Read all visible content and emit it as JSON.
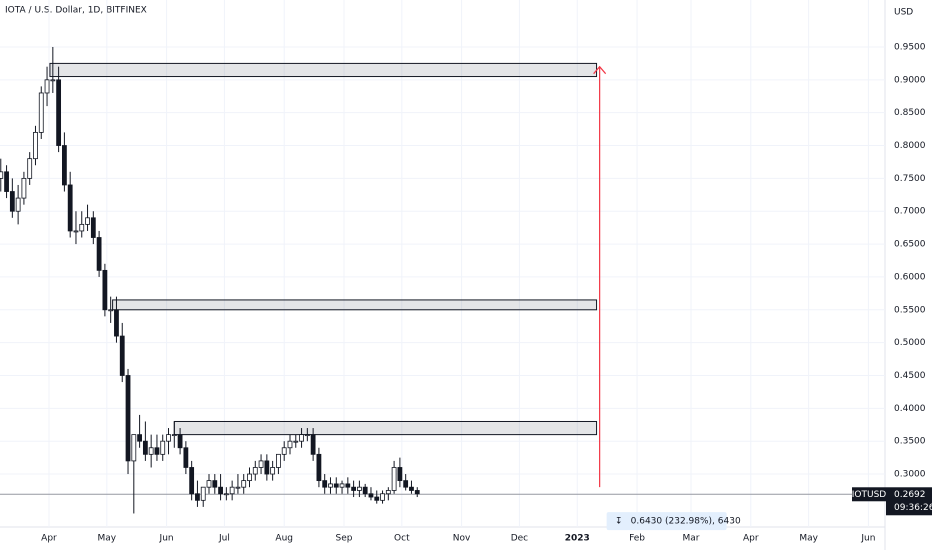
{
  "chart_data": {
    "type": "candlestick",
    "title": "IOTA / U.S. Dollar, 1D, BITFINEX",
    "currency": "USD",
    "symbol": "IOTUSD",
    "last_price": 0.2692,
    "last_price_label": "0.2692",
    "countdown": "09:36:26",
    "xlim": [
      65.6,
      524.6
    ],
    "ylim": [
      0.2194,
      1.0215
    ],
    "xticks": [
      {
        "value": 91,
        "label": "Apr"
      },
      {
        "value": 121,
        "label": "May"
      },
      {
        "value": 152,
        "label": "Jun"
      },
      {
        "value": 182,
        "label": "Jul"
      },
      {
        "value": 213,
        "label": "Aug"
      },
      {
        "value": 244,
        "label": "Sep"
      },
      {
        "value": 274,
        "label": "Oct"
      },
      {
        "value": 305,
        "label": "Nov"
      },
      {
        "value": 335,
        "label": "Dec"
      },
      {
        "value": 365,
        "label": "2023"
      },
      {
        "value": 396,
        "label": "Feb"
      },
      {
        "value": 424,
        "label": "Mar"
      },
      {
        "value": 455,
        "label": "Apr"
      },
      {
        "value": 485,
        "label": "May"
      },
      {
        "value": 516,
        "label": "Jun"
      }
    ],
    "yticks": [
      {
        "value": 0.3,
        "label": "0.3000"
      },
      {
        "value": 0.35,
        "label": "0.3500"
      },
      {
        "value": 0.4,
        "label": "0.4000"
      },
      {
        "value": 0.45,
        "label": "0.4500"
      },
      {
        "value": 0.5,
        "label": "0.5000"
      },
      {
        "value": 0.55,
        "label": "0.5500"
      },
      {
        "value": 0.6,
        "label": "0.6000"
      },
      {
        "value": 0.65,
        "label": "0.6500"
      },
      {
        "value": 0.7,
        "label": "0.7000"
      },
      {
        "value": 0.75,
        "label": "0.7500"
      },
      {
        "value": 0.8,
        "label": "0.8000"
      },
      {
        "value": 0.85,
        "label": "0.8500"
      },
      {
        "value": 0.9,
        "label": "0.9000"
      },
      {
        "value": 0.95,
        "label": "0.9500"
      }
    ],
    "grid": true,
    "up_color": "#ffffff",
    "down_color": "#131722",
    "wick_color": "#131722",
    "x": [
      66,
      69,
      72,
      75,
      78,
      81,
      84,
      87,
      90,
      93,
      96,
      99,
      102,
      105,
      108,
      111,
      114,
      117,
      120,
      123,
      126,
      129,
      132,
      135,
      138,
      141,
      144,
      147,
      150,
      153,
      156,
      159,
      162,
      165,
      168,
      171,
      174,
      177,
      180,
      183,
      186,
      189,
      192,
      195,
      198,
      201,
      204,
      207,
      210,
      213,
      216,
      219,
      222,
      225,
      228,
      231,
      234,
      237,
      240,
      243,
      246,
      249,
      252,
      255,
      258,
      261,
      264,
      267,
      270,
      273,
      276,
      279,
      282
    ],
    "open": [
      0.75,
      0.76,
      0.73,
      0.7,
      0.72,
      0.75,
      0.78,
      0.82,
      0.88,
      0.9,
      0.9,
      0.8,
      0.74,
      0.67,
      0.67,
      0.68,
      0.69,
      0.66,
      0.61,
      0.55,
      0.55,
      0.51,
      0.45,
      0.32,
      0.36,
      0.35,
      0.33,
      0.34,
      0.33,
      0.35,
      0.36,
      0.36,
      0.34,
      0.31,
      0.27,
      0.26,
      0.28,
      0.29,
      0.28,
      0.27,
      0.27,
      0.28,
      0.28,
      0.29,
      0.3,
      0.31,
      0.32,
      0.3,
      0.31,
      0.33,
      0.34,
      0.35,
      0.35,
      0.36,
      0.36,
      0.33,
      0.29,
      0.28,
      0.285,
      0.28,
      0.285,
      0.28,
      0.275,
      0.28,
      0.27,
      0.265,
      0.26,
      0.27,
      0.275,
      0.31,
      0.29,
      0.28,
      0.275
    ],
    "high": [
      0.78,
      0.77,
      0.75,
      0.74,
      0.76,
      0.79,
      0.83,
      0.89,
      0.92,
      0.95,
      0.92,
      0.82,
      0.76,
      0.7,
      0.7,
      0.71,
      0.7,
      0.67,
      0.62,
      0.57,
      0.57,
      0.53,
      0.46,
      0.36,
      0.39,
      0.38,
      0.36,
      0.36,
      0.36,
      0.37,
      0.38,
      0.37,
      0.35,
      0.32,
      0.29,
      0.28,
      0.3,
      0.3,
      0.3,
      0.28,
      0.29,
      0.3,
      0.3,
      0.31,
      0.32,
      0.33,
      0.33,
      0.32,
      0.33,
      0.35,
      0.36,
      0.36,
      0.37,
      0.37,
      0.37,
      0.34,
      0.3,
      0.295,
      0.295,
      0.29,
      0.295,
      0.29,
      0.29,
      0.285,
      0.28,
      0.275,
      0.275,
      0.28,
      0.32,
      0.325,
      0.3,
      0.29,
      0.28
    ],
    "low": [
      0.73,
      0.72,
      0.69,
      0.68,
      0.71,
      0.74,
      0.77,
      0.81,
      0.86,
      0.88,
      0.79,
      0.73,
      0.66,
      0.65,
      0.66,
      0.67,
      0.65,
      0.6,
      0.54,
      0.53,
      0.5,
      0.44,
      0.3,
      0.24,
      0.34,
      0.32,
      0.31,
      0.32,
      0.32,
      0.33,
      0.34,
      0.33,
      0.3,
      0.26,
      0.25,
      0.25,
      0.27,
      0.27,
      0.26,
      0.26,
      0.26,
      0.27,
      0.27,
      0.28,
      0.29,
      0.3,
      0.29,
      0.29,
      0.3,
      0.32,
      0.33,
      0.34,
      0.34,
      0.35,
      0.32,
      0.28,
      0.27,
      0.27,
      0.27,
      0.27,
      0.27,
      0.265,
      0.265,
      0.265,
      0.26,
      0.255,
      0.255,
      0.26,
      0.27,
      0.28,
      0.275,
      0.27,
      0.265
    ],
    "close": [
      0.76,
      0.73,
      0.7,
      0.72,
      0.75,
      0.78,
      0.82,
      0.88,
      0.9,
      0.9,
      0.8,
      0.74,
      0.67,
      0.67,
      0.68,
      0.69,
      0.66,
      0.61,
      0.55,
      0.55,
      0.51,
      0.45,
      0.32,
      0.36,
      0.35,
      0.33,
      0.34,
      0.33,
      0.35,
      0.36,
      0.36,
      0.34,
      0.31,
      0.27,
      0.26,
      0.28,
      0.29,
      0.28,
      0.27,
      0.27,
      0.28,
      0.28,
      0.29,
      0.3,
      0.31,
      0.32,
      0.3,
      0.31,
      0.33,
      0.34,
      0.35,
      0.35,
      0.36,
      0.36,
      0.33,
      0.29,
      0.28,
      0.285,
      0.28,
      0.285,
      0.28,
      0.275,
      0.28,
      0.27,
      0.265,
      0.26,
      0.27,
      0.275,
      0.31,
      0.29,
      0.28,
      0.275,
      0.27
    ],
    "zones": [
      {
        "x_from": 91.5,
        "x_to": 375,
        "from": 0.905,
        "to": 0.925
      },
      {
        "x_from": 124,
        "x_to": 375,
        "from": 0.55,
        "to": 0.565
      },
      {
        "x_from": 156,
        "x_to": 375,
        "from": 0.36,
        "to": 0.38
      }
    ],
    "measure": {
      "x": 376.6,
      "from": 0.28,
      "to": 0.92,
      "color": "#f23645",
      "label": "0.6430 (232.98%), 6430"
    }
  }
}
